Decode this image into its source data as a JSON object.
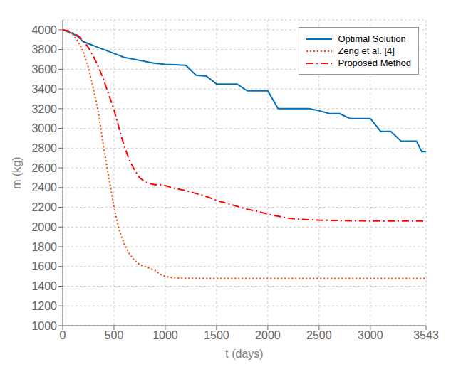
{
  "chart_data": {
    "type": "line",
    "title": "",
    "xlabel": "t (days)",
    "ylabel": "m (kg)",
    "xlim": [
      0,
      3543
    ],
    "ylim": [
      1000,
      4100
    ],
    "xticks": [
      0,
      500,
      1000,
      1500,
      2000,
      2500,
      3000,
      3543
    ],
    "yticks": [
      1000,
      1200,
      1400,
      1600,
      1800,
      2000,
      2200,
      2400,
      2600,
      2800,
      3000,
      3200,
      3400,
      3600,
      3800,
      4000
    ],
    "grid": true,
    "legend": "upper right",
    "series": [
      {
        "name": "Optimal Solution",
        "color": "#0072BD",
        "line_style": "solid",
        "x": [
          0,
          100,
          150,
          200,
          250,
          300,
          350,
          400,
          450,
          500,
          550,
          600,
          650,
          700,
          750,
          800,
          850,
          900,
          950,
          1000,
          1050,
          1100,
          1150,
          1200,
          1300,
          1400,
          1500,
          1600,
          1700,
          1800,
          1900,
          2000,
          2100,
          2200,
          2300,
          2400,
          2500,
          2600,
          2700,
          2800,
          2900,
          3000,
          3100,
          3200,
          3300,
          3400,
          3450,
          3500,
          3543
        ],
        "values": [
          4000,
          3960,
          3930,
          3880,
          3860,
          3840,
          3820,
          3800,
          3780,
          3760,
          3740,
          3720,
          3710,
          3700,
          3690,
          3680,
          3670,
          3660,
          3655,
          3650,
          3648,
          3645,
          3643,
          3640,
          3540,
          3530,
          3450,
          3450,
          3450,
          3380,
          3380,
          3380,
          3200,
          3200,
          3200,
          3200,
          3180,
          3150,
          3150,
          3100,
          3100,
          3100,
          2970,
          2970,
          2870,
          2870,
          2870,
          2765,
          2765
        ]
      },
      {
        "name": "Zeng et al. [4]",
        "color": "#FF4500",
        "line_style": "dotted",
        "x": [
          0,
          50,
          100,
          150,
          200,
          250,
          300,
          350,
          400,
          450,
          500,
          550,
          600,
          650,
          700,
          750,
          800,
          850,
          900,
          950,
          1000,
          1050,
          1100,
          1150,
          1200,
          1300,
          1400,
          1500,
          2000,
          2500,
          3000,
          3543
        ],
        "values": [
          4000,
          3980,
          3950,
          3880,
          3780,
          3620,
          3400,
          3150,
          2800,
          2500,
          2200,
          1970,
          1830,
          1730,
          1660,
          1620,
          1600,
          1580,
          1560,
          1520,
          1500,
          1490,
          1485,
          1483,
          1482,
          1481,
          1480,
          1479,
          1479,
          1479,
          1479,
          1479
        ]
      },
      {
        "name": "Proposed Method",
        "color": "#FF0000",
        "line_style": "dashdot",
        "x": [
          0,
          50,
          100,
          150,
          200,
          250,
          300,
          350,
          400,
          450,
          500,
          550,
          600,
          650,
          700,
          750,
          800,
          850,
          900,
          950,
          1000,
          1100,
          1200,
          1300,
          1400,
          1500,
          1600,
          1700,
          1800,
          1900,
          2000,
          2100,
          2200,
          2300,
          2400,
          2500,
          2600,
          2700,
          2800,
          2900,
          3000,
          3100,
          3200,
          3300,
          3400,
          3500,
          3543
        ],
        "values": [
          4000,
          3990,
          3970,
          3940,
          3890,
          3820,
          3730,
          3620,
          3490,
          3340,
          3190,
          3000,
          2820,
          2680,
          2580,
          2500,
          2460,
          2440,
          2430,
          2430,
          2420,
          2390,
          2370,
          2340,
          2310,
          2270,
          2240,
          2210,
          2180,
          2160,
          2130,
          2110,
          2090,
          2080,
          2075,
          2070,
          2068,
          2066,
          2064,
          2063,
          2062,
          2061,
          2061,
          2061,
          2061,
          2061,
          2060
        ]
      }
    ]
  }
}
